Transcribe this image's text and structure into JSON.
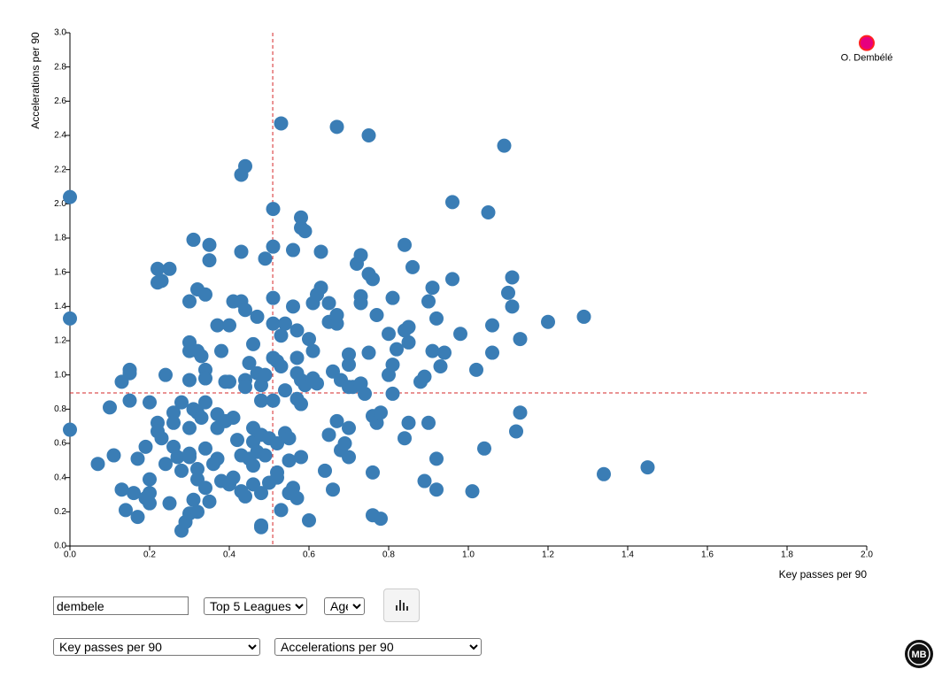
{
  "chart_data": {
    "type": "scatter",
    "x_label": "Key passes per 90",
    "y_label": "Accelerations per 90",
    "color": "#3a7db5",
    "x": [
      0.0,
      0.0,
      0.0,
      0.07,
      0.1,
      0.11,
      0.13,
      0.13,
      0.14,
      0.15,
      0.15,
      0.15,
      0.16,
      0.17,
      0.17,
      0.19,
      0.19,
      0.2,
      0.2,
      0.2,
      0.2,
      0.22,
      0.22,
      0.23,
      0.22,
      0.22,
      0.23,
      0.24,
      0.24,
      0.25,
      0.25,
      0.26,
      0.26,
      0.26,
      0.27,
      0.28,
      0.28,
      0.28,
      0.29,
      0.3,
      0.3,
      0.3,
      0.3,
      0.3,
      0.3,
      0.3,
      0.3,
      0.31,
      0.31,
      0.31,
      0.32,
      0.32,
      0.32,
      0.32,
      0.32,
      0.32,
      0.33,
      0.33,
      0.34,
      0.34,
      0.34,
      0.34,
      0.34,
      0.34,
      0.35,
      0.35,
      0.35,
      0.36,
      0.37,
      0.37,
      0.37,
      0.37,
      0.38,
      0.38,
      0.39,
      0.39,
      0.4,
      0.4,
      0.4,
      0.41,
      0.41,
      0.41,
      0.42,
      0.43,
      0.43,
      0.43,
      0.43,
      0.43,
      0.44,
      0.44,
      0.44,
      0.44,
      0.44,
      0.45,
      0.45,
      0.46,
      0.46,
      0.46,
      0.46,
      0.46,
      0.47,
      0.47,
      0.47,
      0.48,
      0.48,
      0.48,
      0.48,
      0.48,
      0.48,
      0.49,
      0.49,
      0.49,
      0.5,
      0.5,
      0.51,
      0.51,
      0.51,
      0.51,
      0.51,
      0.51,
      0.52,
      0.52,
      0.52,
      0.52,
      0.53,
      0.53,
      0.53,
      0.53,
      0.54,
      0.54,
      0.54,
      0.55,
      0.55,
      0.55,
      0.56,
      0.56,
      0.56,
      0.57,
      0.57,
      0.57,
      0.57,
      0.57,
      0.58,
      0.58,
      0.58,
      0.58,
      0.58,
      0.59,
      0.59,
      0.6,
      0.6,
      0.61,
      0.61,
      0.61,
      0.62,
      0.62,
      0.63,
      0.63,
      0.64,
      0.65,
      0.65,
      0.65,
      0.66,
      0.66,
      0.67,
      0.67,
      0.67,
      0.67,
      0.68,
      0.68,
      0.69,
      0.7,
      0.7,
      0.7,
      0.7,
      0.7,
      0.71,
      0.72,
      0.73,
      0.73,
      0.73,
      0.73,
      0.74,
      0.75,
      0.75,
      0.75,
      0.76,
      0.76,
      0.76,
      0.76,
      0.77,
      0.77,
      0.78,
      0.78,
      0.8,
      0.8,
      0.81,
      0.81,
      0.81,
      0.82,
      0.84,
      0.84,
      0.84,
      0.85,
      0.85,
      0.85,
      0.86,
      0.88,
      0.89,
      0.89,
      0.9,
      0.9,
      0.91,
      0.91,
      0.92,
      0.92,
      0.92,
      0.93,
      0.94,
      0.96,
      0.96,
      0.98,
      1.01,
      1.02,
      1.04,
      1.05,
      1.06,
      1.06,
      1.09,
      1.1,
      1.11,
      1.11,
      1.12,
      1.13,
      1.13,
      1.2,
      1.29,
      1.34,
      1.45
    ],
    "values": [
      2.04,
      1.33,
      0.68,
      0.48,
      0.81,
      0.53,
      0.96,
      0.33,
      0.21,
      1.03,
      1.01,
      0.85,
      0.31,
      0.17,
      0.51,
      0.58,
      0.28,
      0.84,
      0.39,
      0.31,
      0.25,
      1.62,
      1.54,
      1.55,
      0.72,
      0.67,
      0.63,
      1.0,
      0.48,
      1.62,
      0.25,
      0.78,
      0.72,
      0.58,
      0.52,
      0.84,
      0.44,
      0.09,
      0.14,
      1.43,
      1.19,
      1.14,
      0.97,
      0.69,
      0.54,
      0.52,
      0.19,
      1.79,
      0.8,
      0.27,
      1.5,
      1.14,
      0.78,
      0.45,
      0.39,
      0.2,
      1.11,
      0.75,
      1.47,
      1.03,
      0.98,
      0.84,
      0.57,
      0.34,
      1.76,
      1.67,
      0.26,
      0.48,
      1.29,
      0.77,
      0.69,
      0.51,
      1.14,
      0.38,
      0.96,
      0.73,
      1.29,
      0.96,
      0.36,
      1.43,
      0.75,
      0.4,
      0.62,
      2.17,
      1.72,
      1.43,
      0.53,
      0.32,
      2.22,
      1.38,
      0.97,
      0.93,
      0.29,
      1.07,
      0.51,
      1.18,
      0.69,
      0.61,
      0.47,
      0.36,
      1.34,
      1.01,
      0.55,
      0.94,
      0.85,
      0.65,
      0.31,
      0.12,
      0.11,
      1.68,
      1.0,
      0.53,
      0.63,
      0.37,
      1.97,
      1.75,
      1.45,
      1.3,
      1.1,
      0.85,
      1.08,
      0.6,
      0.43,
      0.4,
      2.47,
      1.23,
      1.05,
      0.21,
      1.3,
      0.91,
      0.66,
      0.63,
      0.5,
      0.31,
      1.73,
      1.4,
      0.34,
      1.26,
      1.1,
      1.01,
      0.86,
      0.28,
      1.92,
      1.86,
      0.97,
      0.83,
      0.52,
      1.84,
      0.94,
      1.21,
      0.15,
      1.42,
      1.14,
      0.98,
      1.47,
      0.95,
      1.72,
      1.51,
      0.44,
      1.42,
      1.31,
      0.65,
      1.02,
      0.33,
      2.45,
      1.35,
      1.3,
      0.73,
      0.97,
      0.56,
      0.6,
      1.12,
      1.06,
      0.93,
      0.69,
      0.52,
      0.93,
      1.65,
      1.7,
      1.46,
      1.42,
      0.95,
      0.89,
      2.4,
      1.59,
      1.13,
      1.56,
      0.76,
      0.43,
      0.18,
      1.35,
      0.72,
      0.78,
      0.16,
      1.24,
      1.0,
      1.45,
      1.06,
      0.89,
      1.15,
      1.76,
      1.26,
      0.63,
      1.28,
      1.19,
      0.72,
      1.63,
      0.96,
      0.99,
      0.38,
      1.43,
      0.72,
      1.51,
      1.14,
      1.33,
      0.51,
      0.33,
      1.05,
      1.13,
      2.01,
      1.56,
      1.24,
      0.32,
      1.03,
      0.57,
      1.95,
      1.29,
      1.13,
      2.34,
      1.48,
      1.57,
      1.4,
      0.67,
      1.21,
      0.78,
      1.31,
      1.34,
      0.42,
      0.46
    ],
    "highlight": {
      "label": "O. Dembélé",
      "x": 2.0,
      "y": 2.94,
      "color": "#e6007e",
      "stroke": "#ff2020"
    },
    "reference_lines": {
      "x": 0.509,
      "y": 0.895,
      "color": "#d62728"
    },
    "xlim": [
      0,
      2
    ],
    "ylim": [
      0,
      3
    ],
    "xticks": [
      {
        "value": 0,
        "label": "0.0"
      },
      0.2,
      0.4,
      0.6,
      0.8,
      {
        "value": 1,
        "label": "1.0"
      },
      1.2,
      1.4,
      1.6,
      1.8,
      {
        "value": 2,
        "label": "2.0"
      }
    ],
    "yticks": [
      {
        "value": 0,
        "label": "0.0"
      },
      0.2,
      0.4,
      0.6,
      0.8,
      {
        "value": 1,
        "label": "1.0"
      },
      1.2,
      1.4,
      1.6,
      1.8,
      {
        "value": 2,
        "label": "2.0"
      },
      2.2,
      2.4,
      2.6,
      2.8,
      {
        "value": 3,
        "label": "3.0"
      }
    ]
  },
  "controls": {
    "search": "dembele",
    "league": "Top 5 Leagues",
    "sort": "Age",
    "x_metric": "Key passes per 90",
    "y_metric": "Accelerations per 90"
  },
  "logo": "MB"
}
